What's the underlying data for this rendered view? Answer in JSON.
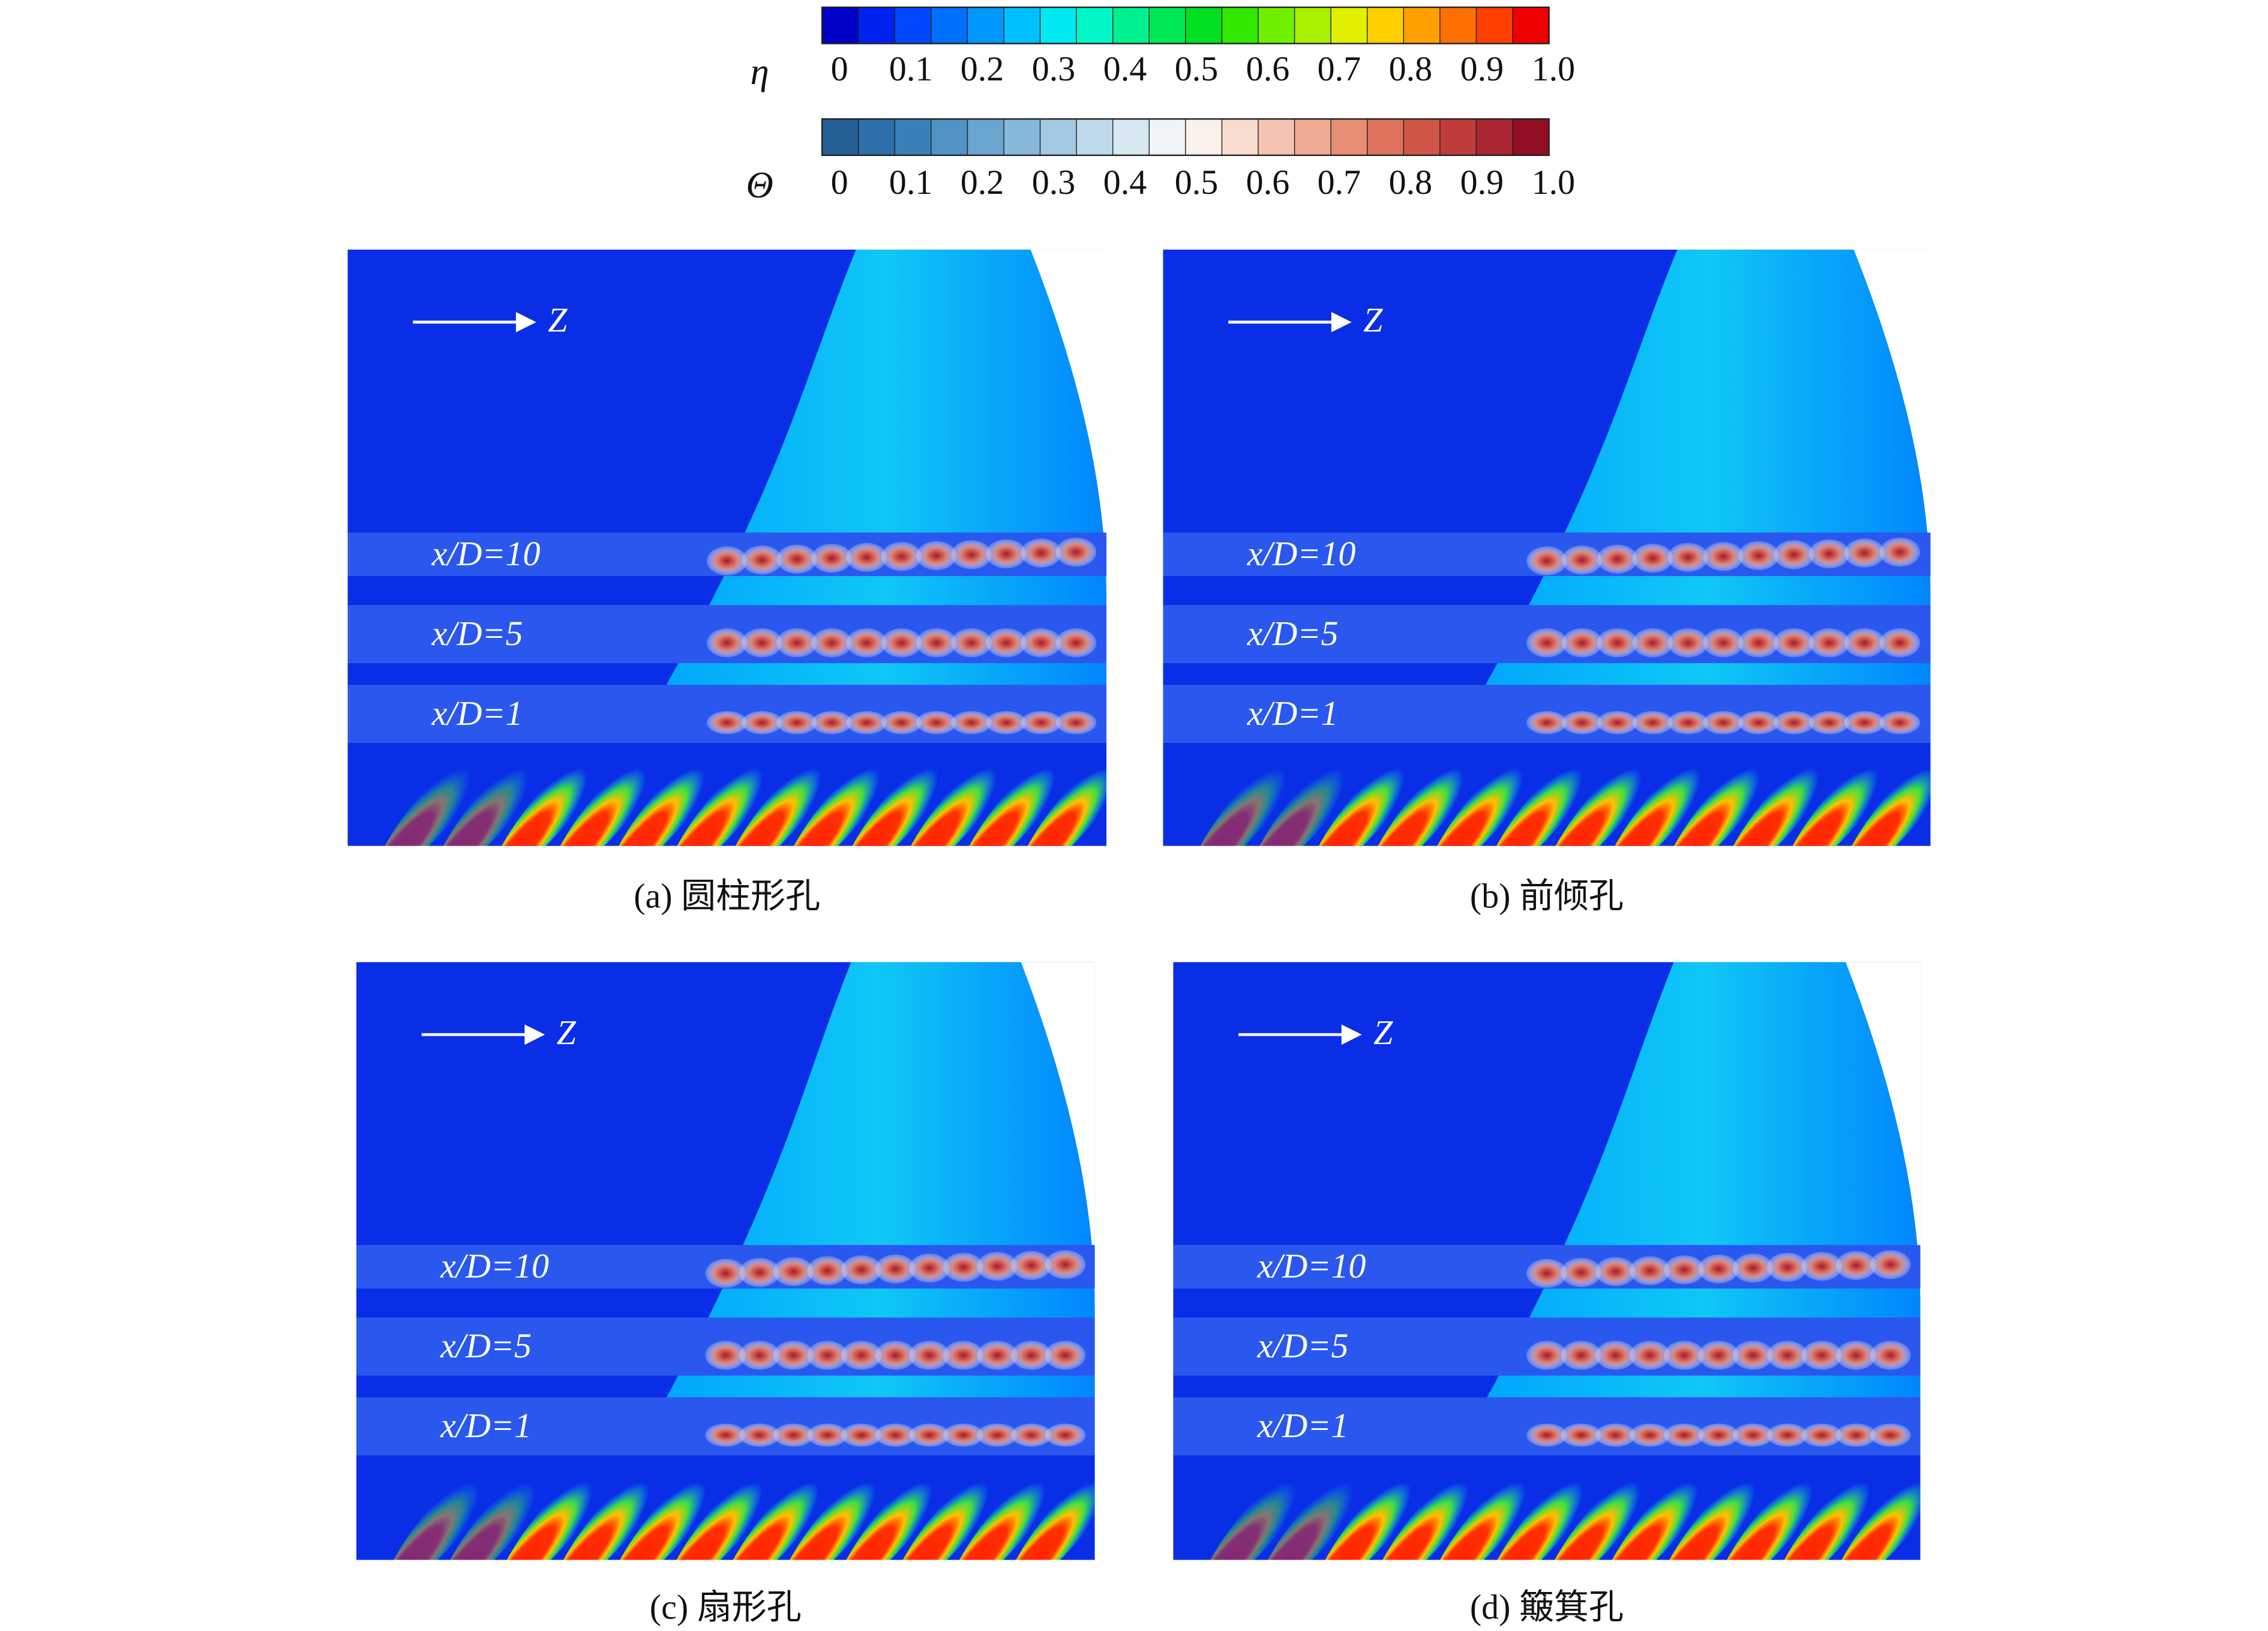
{
  "colorbars": [
    {
      "symbol": "η",
      "lim": [
        0,
        1
      ],
      "colors": [
        "#0000c8",
        "#0022f0",
        "#0048ff",
        "#0070ff",
        "#0098ff",
        "#00c0ff",
        "#00e8f0",
        "#00f8c8",
        "#00f090",
        "#00e858",
        "#00e020",
        "#30e800",
        "#70f000",
        "#a8f000",
        "#e0f000",
        "#ffd000",
        "#ffa000",
        "#ff7000",
        "#ff4000",
        "#f00000"
      ],
      "ticks": [
        0,
        0.1,
        0.2,
        0.3,
        0.4,
        0.5,
        0.6,
        0.7,
        0.8,
        0.9,
        {
          "value": 1,
          "label": "1.0"
        }
      ]
    },
    {
      "symbol": "Θ",
      "lim": [
        0,
        1
      ],
      "colors": [
        "#245f96",
        "#2d6fa8",
        "#3a80b8",
        "#5093c4",
        "#6aa6cf",
        "#86b8d9",
        "#a3cae2",
        "#bfdaeb",
        "#d8e8f2",
        "#eef4f8",
        "#fbf1ec",
        "#f8dccf",
        "#f4c4b0",
        "#efaa92",
        "#e88e75",
        "#de725c",
        "#d05648",
        "#bf3c3a",
        "#aa2530",
        "#900f25"
      ],
      "ticks": [
        0,
        0.1,
        0.2,
        0.3,
        0.4,
        0.5,
        0.6,
        0.7,
        0.8,
        0.9,
        {
          "value": 1,
          "label": "1.0"
        }
      ]
    }
  ],
  "panels": [
    {
      "caption": "(a) 圆柱形孔",
      "axis_label": "Z",
      "sections": [
        "x/D=10",
        "x/D=5",
        "x/D=1"
      ]
    },
    {
      "caption": "(b) 前倾孔",
      "axis_label": "Z",
      "sections": [
        "x/D=10",
        "x/D=5",
        "x/D=1"
      ]
    },
    {
      "caption": "(c) 扇形孔",
      "axis_label": "Z",
      "sections": [
        "x/D=10",
        "x/D=5",
        "x/D=1"
      ]
    },
    {
      "caption": "(d) 簸箕孔",
      "axis_label": "Z",
      "sections": [
        "x/D=10",
        "x/D=5",
        "x/D=1"
      ]
    }
  ]
}
